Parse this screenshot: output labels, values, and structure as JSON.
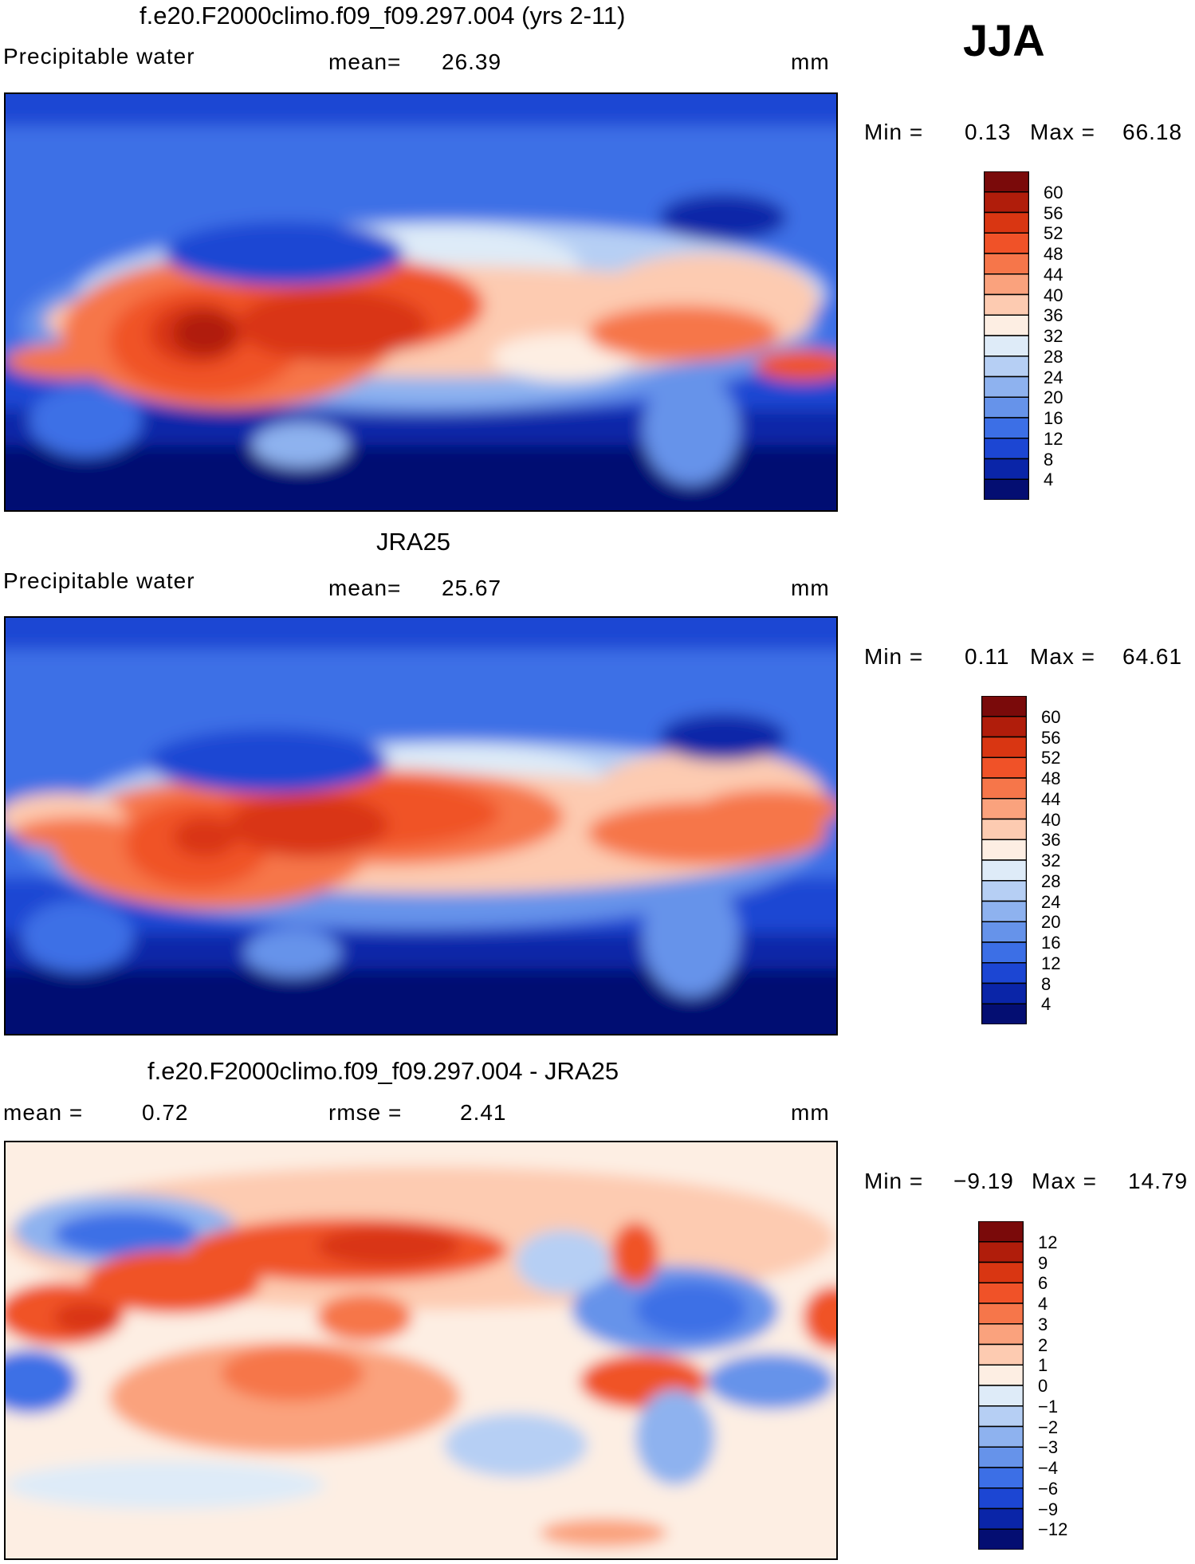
{
  "season": "JJA",
  "panels": [
    {
      "title": "f.e20.F2000climo.f09_f09.297.004 (yrs 2-11)",
      "variable": "Precipitable water",
      "stat1_label": "mean=",
      "stat1_value": "26.39",
      "stat2_label": "",
      "stat2_value": "",
      "units": "mm",
      "min_label": "Min =",
      "min_value": "0.13",
      "max_label": "Max =",
      "max_value": "66.18"
    },
    {
      "title": "JRA25",
      "variable": "Precipitable water",
      "stat1_label": "mean=",
      "stat1_value": "25.67",
      "stat2_label": "",
      "stat2_value": "",
      "units": "mm",
      "min_label": "Min =",
      "min_value": "0.11",
      "max_label": "Max =",
      "max_value": "64.61"
    },
    {
      "title": "f.e20.F2000climo.f09_f09.297.004 - JRA25",
      "variable": "",
      "stat1_label": "mean =",
      "stat1_value": "0.72",
      "stat2_label": "rmse =",
      "stat2_value": "2.41",
      "units": "mm",
      "min_label": "Min =",
      "min_value": "−9.19",
      "max_label": "Max =",
      "max_value": "14.79"
    }
  ],
  "chart_data": [
    {
      "type": "heatmap",
      "title": "f.e20.F2000climo.f09_f09.297.004 (yrs 2-11)",
      "variable": "Precipitable water",
      "units": "mm",
      "mean": 26.39,
      "min": 0.13,
      "max": 66.18,
      "colorbar_ticks": [
        "60",
        "56",
        "52",
        "48",
        "44",
        "40",
        "36",
        "32",
        "28",
        "24",
        "20",
        "16",
        "12",
        "8",
        "4"
      ],
      "colorbar_colors": [
        "#7a0a0a",
        "#b01d0b",
        "#d93612",
        "#f05228",
        "#f6764a",
        "#faa27d",
        "#fdcbb1",
        "#fdeee3",
        "#deebf8",
        "#b6cff4",
        "#8eb2ef",
        "#6693ea",
        "#3c6fe6",
        "#1c46d3",
        "#0a25a8",
        "#040e72"
      ]
    },
    {
      "type": "heatmap",
      "title": "JRA25",
      "variable": "Precipitable water",
      "units": "mm",
      "mean": 25.67,
      "min": 0.11,
      "max": 64.61,
      "colorbar_ticks": [
        "60",
        "56",
        "52",
        "48",
        "44",
        "40",
        "36",
        "32",
        "28",
        "24",
        "20",
        "16",
        "12",
        "8",
        "4"
      ],
      "colorbar_colors": [
        "#7a0a0a",
        "#b01d0b",
        "#d93612",
        "#f05228",
        "#f6764a",
        "#faa27d",
        "#fdcbb1",
        "#fdeee3",
        "#deebf8",
        "#b6cff4",
        "#8eb2ef",
        "#6693ea",
        "#3c6fe6",
        "#1c46d3",
        "#0a25a8",
        "#040e72"
      ]
    },
    {
      "type": "heatmap",
      "title": "f.e20.F2000climo.f09_f09.297.004 - JRA25",
      "variable": "",
      "units": "mm",
      "mean": 0.72,
      "rmse": 2.41,
      "min": -9.19,
      "max": 14.79,
      "colorbar_ticks": [
        "12",
        "9",
        "6",
        "4",
        "3",
        "2",
        "1",
        "0",
        "−1",
        "−2",
        "−3",
        "−4",
        "−6",
        "−9",
        "−12"
      ],
      "colorbar_colors": [
        "#7a0a0a",
        "#b01d0b",
        "#d93612",
        "#f05228",
        "#f6764a",
        "#faa27d",
        "#fdcbb1",
        "#fdeee3",
        "#deebf8",
        "#b6cff4",
        "#8eb2ef",
        "#6693ea",
        "#3c6fe6",
        "#1c46d3",
        "#0a25a8",
        "#040e72"
      ]
    }
  ]
}
